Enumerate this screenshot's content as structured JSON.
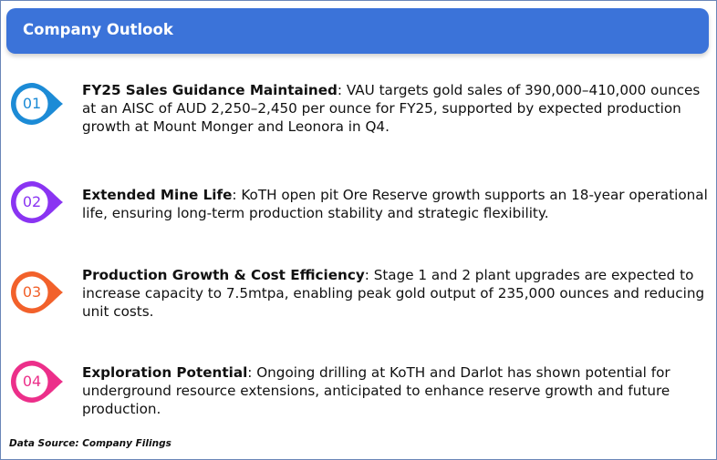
{
  "header": {
    "title": "Company Outlook"
  },
  "items": [
    {
      "number": "01",
      "color": "#1c8bd6",
      "heading": "FY25 Sales Guidance Maintained",
      "body": ": VAU targets gold sales of 390,000–410,000 ounces at an AISC of AUD 2,250–2,450 per ounce for FY25, supported by expected production growth at Mount Monger and Leonora in Q4."
    },
    {
      "number": "02",
      "color": "#8a34f2",
      "heading": "Extended Mine Life",
      "body": ": KoTH open pit Ore Reserve growth supports an 18-year operational life, ensuring long-term production stability and strategic flexibility."
    },
    {
      "number": "03",
      "color": "#f2612b",
      "heading": "Production Growth & Cost Efficiency",
      "body": ": Stage 1 and 2 plant upgrades are expected to increase capacity to 7.5mtpa, enabling peak gold output of 235,000 ounces and reducing unit costs."
    },
    {
      "number": "04",
      "color": "#ec2f8a",
      "heading": "Exploration Potential",
      "body": ": Ongoing drilling at KoTH and Darlot has shown potential for underground resource extensions, anticipated to enhance reserve growth and future production."
    }
  ],
  "footer": {
    "source": "Data Source: Company Filings"
  }
}
